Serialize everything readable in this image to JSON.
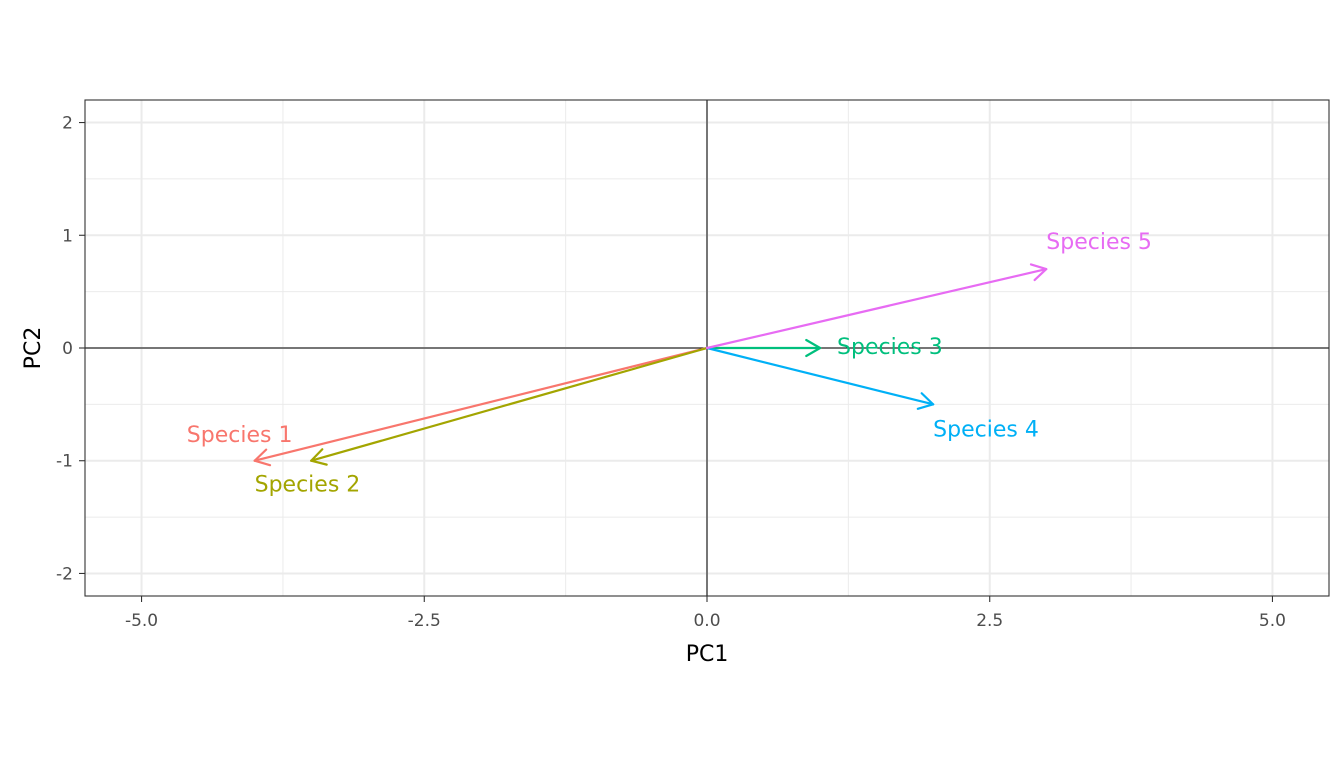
{
  "chart_data": {
    "type": "biplot",
    "title": "",
    "xlabel": "PC1",
    "ylabel": "PC2",
    "xlim": [
      -5.5,
      5.5
    ],
    "ylim": [
      -2.2,
      2.2
    ],
    "x_ticks": [
      -5.0,
      -2.5,
      0.0,
      2.5,
      5.0
    ],
    "x_tick_labels": [
      "-5.0",
      "-2.5",
      "0.0",
      "2.5",
      "5.0"
    ],
    "y_ticks": [
      -2,
      -1,
      0,
      1,
      2
    ],
    "y_tick_labels": [
      "-2",
      "-1",
      "0",
      "1",
      "2"
    ],
    "grid": true,
    "reference_lines": {
      "x": 0,
      "y": 0
    },
    "series": [
      {
        "name": "Species 1",
        "x": -4.0,
        "y": -1.0,
        "color": "#F8766D",
        "label_x": -4.6,
        "label_y": -0.78,
        "label_anchor": "start"
      },
      {
        "name": "Species 2",
        "x": -3.5,
        "y": -1.0,
        "color": "#A3A500",
        "label_x": -4.0,
        "label_y": -1.22,
        "label_anchor": "start"
      },
      {
        "name": "Species 3",
        "x": 1.0,
        "y": 0.0,
        "color": "#00BF7D",
        "label_x": 1.15,
        "label_y": 0.0,
        "label_anchor": "start"
      },
      {
        "name": "Species 4",
        "x": 2.0,
        "y": -0.5,
        "color": "#00B0F6",
        "label_x": 2.0,
        "label_y": -0.73,
        "label_anchor": "start"
      },
      {
        "name": "Species 5",
        "x": 3.0,
        "y": 0.7,
        "color": "#E76BF3",
        "label_x": 3.0,
        "label_y": 0.93,
        "label_anchor": "start"
      }
    ]
  }
}
